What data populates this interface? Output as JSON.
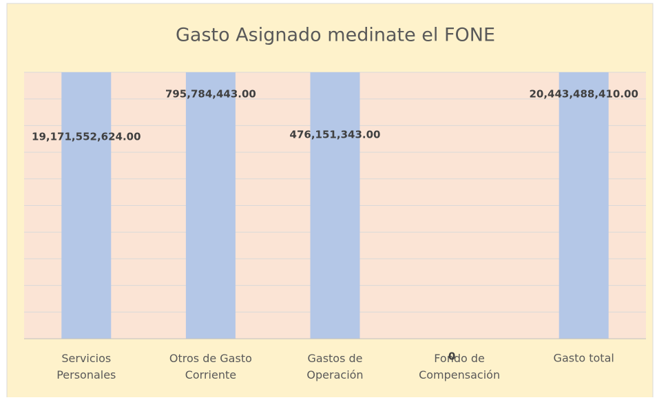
{
  "chart_data": {
    "type": "bar",
    "title": "Gasto Asignado medinate el FONE",
    "categories": [
      "Servicios\nPersonales",
      "Otros de Gasto\nCorriente",
      "Gastos de\nOperación",
      "Fondo de\nCompensación",
      "Gasto total"
    ],
    "values": [
      19171552624,
      795784443,
      476151343,
      0,
      20443488410
    ],
    "value_labels": [
      "19,171,552,624.00",
      "795,784,443.00",
      "476,151,343.00",
      "0",
      "20,443,488,410.00"
    ],
    "color": "#b4c7e7",
    "ylim": [
      0,
      400000000
    ]
  }
}
